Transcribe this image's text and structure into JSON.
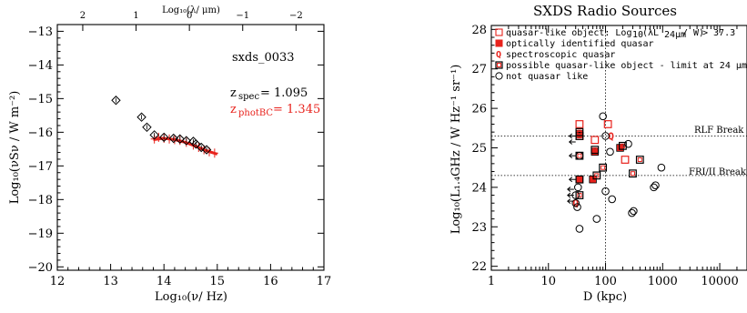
{
  "chart_data": [
    {
      "type": "scatter",
      "xlabel": "Log₁₀(ν/ Hz)",
      "ylabel": "Log₁₀(νSν / W m⁻²)",
      "top_axis_label": "Log₁₀(λ/ μm)",
      "xlim": [
        12,
        17
      ],
      "ylim": [
        -20.1,
        -12.8
      ],
      "x_ticks": [
        "12",
        "13",
        "14",
        "15",
        "16",
        "17"
      ],
      "y_ticks": [
        "−20",
        "−19",
        "−18",
        "−17",
        "−16",
        "−15",
        "−14",
        "−13"
      ],
      "top_ticks": [
        "2",
        "1",
        "0",
        "−1",
        "−2"
      ],
      "annotation_id": "sxds_0033",
      "z_spec_label": "z",
      "z_spec_sub": "spec",
      "z_spec_value": "= 1.095",
      "z_phot_label": "z",
      "z_phot_sub": "photBC",
      "z_phot_value": "= 1.345",
      "annotation_red": "#e8221c",
      "series": [
        {
          "marker": "diamond",
          "x": [
            13.1,
            13.58,
            13.68,
            13.82,
            14.0,
            14.18,
            14.3,
            14.42,
            14.55,
            14.6,
            14.7,
            14.8
          ],
          "y": [
            -15.05,
            -15.55,
            -15.85,
            -16.08,
            -16.15,
            -16.18,
            -16.2,
            -16.25,
            -16.27,
            -16.35,
            -16.45,
            -16.52
          ]
        },
        {
          "marker": "red-errorbar-points",
          "x": [
            13.82,
            13.9,
            14.0,
            14.1,
            14.2,
            14.3,
            14.42,
            14.55,
            14.65,
            14.75,
            14.85,
            14.95
          ],
          "y": [
            -16.2,
            -16.15,
            -16.18,
            -16.2,
            -16.22,
            -16.24,
            -16.3,
            -16.38,
            -16.45,
            -16.52,
            -16.58,
            -16.62
          ]
        },
        {
          "marker": "red-line",
          "x": [
            13.8,
            14.0,
            14.2,
            14.4,
            14.6,
            14.8,
            15.0
          ],
          "y": [
            -16.22,
            -16.18,
            -16.22,
            -16.3,
            -16.42,
            -16.55,
            -16.65
          ]
        }
      ],
      "colors": {
        "diamond": "#000000",
        "model": "#e8221c"
      }
    },
    {
      "type": "scatter",
      "title": "SXDS Radio Sources",
      "xlabel": "D (kpc)",
      "ylabel": "Log₁₀(L₁.₄GHz / W Hz⁻¹ sr⁻¹)",
      "x_scale": "log",
      "xlim": [
        1,
        30000
      ],
      "ylim": [
        21.9,
        28.1
      ],
      "x_ticks": [
        "1",
        "10",
        "100",
        "1000",
        "10000"
      ],
      "y_ticks": [
        "22",
        "23",
        "24",
        "25",
        "26",
        "27",
        "28"
      ],
      "reference_lines": [
        {
          "label": "RLF Break",
          "y": 25.3
        },
        {
          "label": "FRI/II Break",
          "y": 24.3
        }
      ],
      "vertical_reference_x": 100,
      "legend": [
        {
          "marker": "red-open-square",
          "text_pre": "quasar-like object: Log",
          "text_post": " > 37.3"
        },
        {
          "marker": "red-filled-square",
          "text": "optically identified quasar"
        },
        {
          "marker": "red-Q",
          "text": "spectroscopic quasar"
        },
        {
          "marker": "black-red-square",
          "text": "possible quasar-like object - limit at 24 μm"
        },
        {
          "marker": "black-open-circle",
          "text": "not quasar like"
        }
      ],
      "legend_placement": "top-left",
      "series": [
        {
          "name": "quasar-like object",
          "marker": "red-open-square",
          "x": [
            35,
            65,
            110,
            220,
            35
          ],
          "y": [
            25.6,
            25.2,
            25.6,
            24.7,
            25.3
          ]
        },
        {
          "name": "optically identified quasar",
          "marker": "red-filled-square",
          "x": [
            35,
            65,
            180,
            35,
            60
          ],
          "y": [
            24.2,
            24.9,
            25.0,
            25.35,
            24.2
          ]
        },
        {
          "name": "spectroscopic quasar",
          "marker": "red-Q",
          "x": [
            125,
            30
          ],
          "y": [
            25.3,
            23.6
          ]
        },
        {
          "name": "possible quasar-like object",
          "marker": "black-red-square",
          "x": [
            35,
            35,
            35,
            35,
            65,
            70,
            90,
            200,
            300,
            400,
            35
          ],
          "y": [
            25.3,
            25.4,
            24.8,
            24.2,
            24.95,
            24.3,
            24.5,
            25.05,
            24.35,
            24.7,
            23.8
          ]
        },
        {
          "name": "not quasar like",
          "marker": "black-open-circle",
          "x": [
            90,
            100,
            120,
            130,
            250,
            290,
            310,
            700,
            750,
            950,
            35,
            70,
            100,
            35,
            30,
            30,
            32,
            33
          ],
          "y": [
            25.8,
            25.3,
            24.9,
            23.7,
            25.1,
            23.35,
            23.4,
            24.0,
            24.05,
            24.5,
            22.95,
            23.2,
            23.9,
            24.8,
            23.6,
            23.8,
            23.5,
            24.0
          ]
        }
      ],
      "upper_limit_arrows": [
        {
          "x": 30,
          "y": 25.3
        },
        {
          "x": 30,
          "y": 25.15
        },
        {
          "x": 30,
          "y": 24.8
        },
        {
          "x": 30,
          "y": 24.2
        },
        {
          "x": 28,
          "y": 23.95
        },
        {
          "x": 28,
          "y": 23.8
        },
        {
          "x": 28,
          "y": 23.65
        }
      ],
      "colors": {
        "quasar": "#e8221c",
        "black": "#000000"
      }
    }
  ]
}
